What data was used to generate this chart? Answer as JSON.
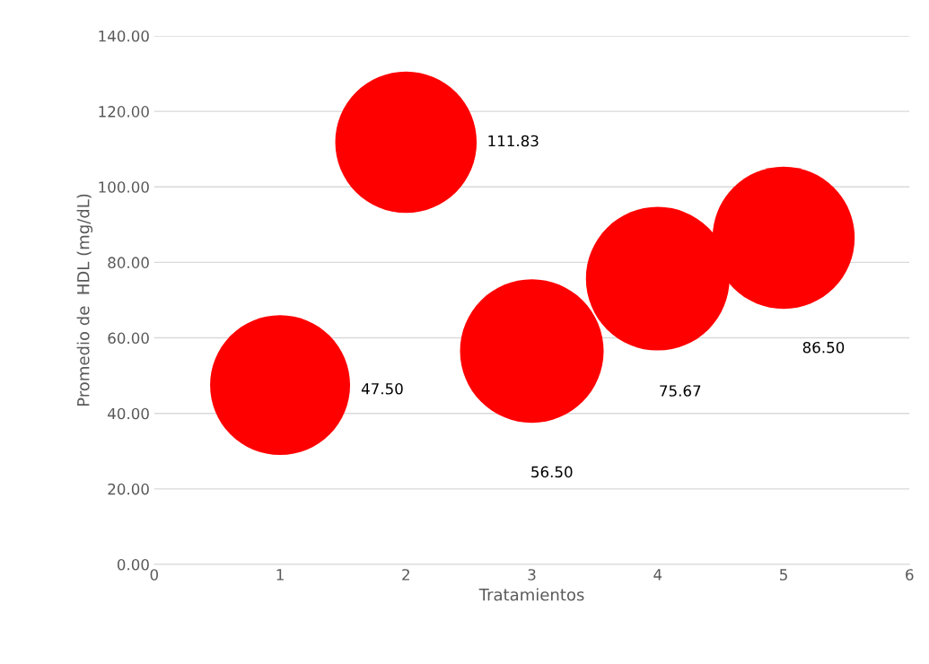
{
  "chart_data": {
    "type": "bubble",
    "xlabel": "Tratamientos",
    "ylabel": "Promedio de  HDL (mg/dL)",
    "x": [
      1,
      2,
      3,
      4,
      5
    ],
    "values": [
      47.5,
      111.83,
      56.5,
      75.67,
      86.5
    ],
    "sizes": [
      0.95,
      0.97,
      1,
      1,
      0.98
    ],
    "value_labels": [
      "47.50",
      "111.83",
      "56.50",
      "75.67",
      "86.50"
    ],
    "color": "#ff0000",
    "xlim": [
      0,
      6
    ],
    "xticks": [
      0,
      1,
      2,
      3,
      4,
      5,
      6
    ],
    "ylim": [
      0,
      140
    ],
    "yticks": [
      {
        "value": 0,
        "label": "0.00"
      },
      {
        "value": 20,
        "label": "20.00"
      },
      {
        "value": 40,
        "label": "40.00"
      },
      {
        "value": 60,
        "label": "60.00"
      },
      {
        "value": 80,
        "label": "80.00"
      },
      {
        "value": 100,
        "label": "100.00"
      },
      {
        "value": 120,
        "label": "120.00"
      },
      {
        "value": 140,
        "label": "140.00"
      }
    ],
    "grid": "y",
    "legend": false
  }
}
